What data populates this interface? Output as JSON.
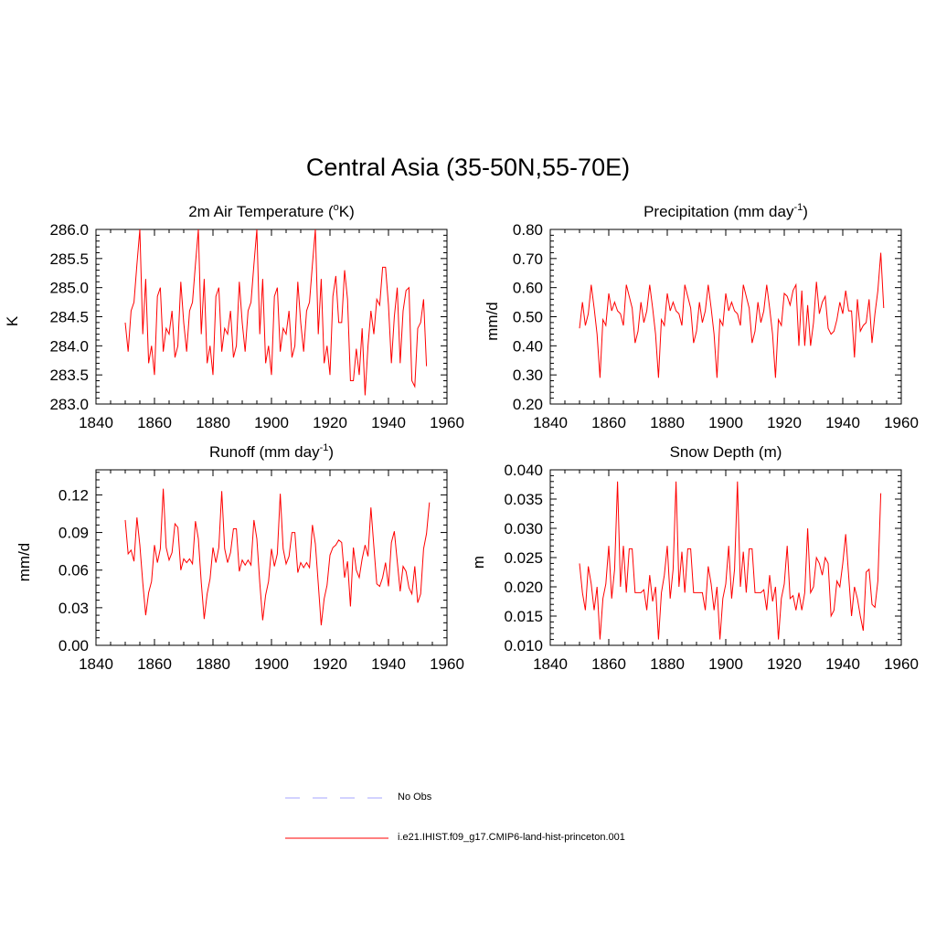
{
  "figure": {
    "title": "Central Asia (35-50N,55-70E)"
  },
  "colors": {
    "model_line": "#ff0000",
    "obs_line": "#a6a6ff",
    "axis": "#000000"
  },
  "legend": {
    "items": [
      {
        "label": "No Obs",
        "style": "dashed",
        "color": "#a6a6ff"
      },
      {
        "label": "i.e21.IHIST.f09_g17.CMIP6-land-hist-princeton.001",
        "style": "solid",
        "color": "#ff0000"
      }
    ]
  },
  "chart_data": [
    {
      "type": "line",
      "title": "2m Air Temperature (oK)",
      "title_base": "2m Air Temperature (",
      "title_sup": "o",
      "title_tail": "K)",
      "ylabel": "K",
      "xlim": [
        1840,
        1960
      ],
      "ylim": [
        283.0,
        286.0
      ],
      "xticks": [
        "1840",
        "1860",
        "1880",
        "1900",
        "1920",
        "1940",
        "1960"
      ],
      "yticks": [
        "283.0",
        "283.5",
        "284.0",
        "284.5",
        "285.0",
        "285.5",
        "286.0"
      ],
      "x_start": 1850,
      "series": [
        {
          "values": [
            284.4,
            283.9,
            284.6,
            284.75,
            285.4,
            286.0,
            284.2,
            285.15,
            283.7,
            284.0,
            283.5,
            284.85,
            285.0,
            283.9,
            284.3,
            284.2,
            284.6,
            283.8,
            284.0,
            285.1,
            284.4,
            283.9,
            284.6,
            284.75,
            285.4,
            286.0,
            284.2,
            285.15,
            283.7,
            284.0,
            283.5,
            284.85,
            285.0,
            283.9,
            284.3,
            284.2,
            284.6,
            283.8,
            284.0,
            285.1,
            284.4,
            283.9,
            284.6,
            284.75,
            285.4,
            286.0,
            284.2,
            285.15,
            283.7,
            284.0,
            283.5,
            284.85,
            285.0,
            283.9,
            284.3,
            284.2,
            284.6,
            283.8,
            284.0,
            285.1,
            284.4,
            283.9,
            284.6,
            284.75,
            285.4,
            286.0,
            284.2,
            285.15,
            283.7,
            284.0,
            283.5,
            284.85,
            285.2,
            284.4,
            284.4,
            285.3,
            284.8,
            283.4,
            283.4,
            283.95,
            283.5,
            284.3,
            283.15,
            284.0,
            284.6,
            284.2,
            284.8,
            284.7,
            285.35,
            285.35,
            284.7,
            283.7,
            284.5,
            285.0,
            283.7,
            284.6,
            284.95,
            285.0,
            283.4,
            283.3,
            284.3,
            284.4,
            284.8,
            283.65
          ]
        }
      ]
    },
    {
      "type": "line",
      "title": "Precipitation (mm day-1)",
      "title_base": "Precipitation (mm day",
      "title_sup": "-1",
      "title_tail": ")",
      "ylabel": "mm/d",
      "xlim": [
        1840,
        1960
      ],
      "ylim": [
        0.2,
        0.8
      ],
      "xticks": [
        "1840",
        "1860",
        "1880",
        "1900",
        "1920",
        "1940",
        "1960"
      ],
      "yticks": [
        "0.20",
        "0.30",
        "0.40",
        "0.50",
        "0.60",
        "0.70",
        "0.80"
      ],
      "x_start": 1850,
      "series": [
        {
          "values": [
            0.46,
            0.55,
            0.47,
            0.51,
            0.61,
            0.53,
            0.44,
            0.29,
            0.49,
            0.47,
            0.58,
            0.52,
            0.55,
            0.52,
            0.51,
            0.47,
            0.61,
            0.57,
            0.53,
            0.41,
            0.45,
            0.55,
            0.48,
            0.52,
            0.61,
            0.53,
            0.44,
            0.29,
            0.49,
            0.47,
            0.58,
            0.52,
            0.55,
            0.52,
            0.51,
            0.47,
            0.61,
            0.57,
            0.53,
            0.41,
            0.45,
            0.55,
            0.48,
            0.52,
            0.61,
            0.53,
            0.44,
            0.29,
            0.49,
            0.47,
            0.58,
            0.52,
            0.55,
            0.52,
            0.51,
            0.47,
            0.61,
            0.57,
            0.53,
            0.41,
            0.45,
            0.55,
            0.48,
            0.52,
            0.61,
            0.53,
            0.44,
            0.29,
            0.49,
            0.47,
            0.58,
            0.57,
            0.54,
            0.59,
            0.61,
            0.4,
            0.59,
            0.4,
            0.54,
            0.4,
            0.48,
            0.62,
            0.51,
            0.55,
            0.57,
            0.46,
            0.44,
            0.45,
            0.49,
            0.55,
            0.51,
            0.59,
            0.52,
            0.52,
            0.36,
            0.56,
            0.45,
            0.47,
            0.48,
            0.56,
            0.41,
            0.51,
            0.59,
            0.72,
            0.53
          ]
        }
      ]
    },
    {
      "type": "line",
      "title": "Runoff (mm day-1)",
      "title_base": "Runoff (mm day",
      "title_sup": "-1",
      "title_tail": ")",
      "ylabel": "mm/d",
      "xlim": [
        1840,
        1960
      ],
      "ylim": [
        0.0,
        0.14
      ],
      "xticks": [
        "1840",
        "1860",
        "1880",
        "1900",
        "1920",
        "1940",
        "1960"
      ],
      "yticks": [
        "0.00",
        "0.03",
        "0.06",
        "0.09",
        "0.12"
      ],
      "ytick_values": [
        0.0,
        0.03,
        0.06,
        0.09,
        0.12
      ],
      "x_start": 1850,
      "series": [
        {
          "values": [
            0.1,
            0.073,
            0.076,
            0.067,
            0.102,
            0.08,
            0.05,
            0.024,
            0.042,
            0.051,
            0.08,
            0.066,
            0.077,
            0.125,
            0.078,
            0.068,
            0.074,
            0.097,
            0.094,
            0.06,
            0.069,
            0.066,
            0.069,
            0.065,
            0.099,
            0.085,
            0.05,
            0.021,
            0.041,
            0.053,
            0.078,
            0.066,
            0.078,
            0.123,
            0.077,
            0.066,
            0.074,
            0.093,
            0.093,
            0.059,
            0.068,
            0.064,
            0.068,
            0.064,
            0.1,
            0.085,
            0.05,
            0.02,
            0.04,
            0.051,
            0.077,
            0.063,
            0.073,
            0.121,
            0.077,
            0.065,
            0.071,
            0.09,
            0.09,
            0.058,
            0.066,
            0.062,
            0.066,
            0.062,
            0.096,
            0.081,
            0.049,
            0.016,
            0.037,
            0.048,
            0.072,
            0.078,
            0.08,
            0.084,
            0.082,
            0.054,
            0.067,
            0.031,
            0.078,
            0.06,
            0.054,
            0.069,
            0.08,
            0.071,
            0.11,
            0.079,
            0.049,
            0.047,
            0.054,
            0.066,
            0.047,
            0.082,
            0.091,
            0.067,
            0.043,
            0.063,
            0.059,
            0.046,
            0.041,
            0.063,
            0.034,
            0.041,
            0.077,
            0.089,
            0.114
          ]
        }
      ]
    },
    {
      "type": "line",
      "title": "Snow Depth (m)",
      "title_base": "Snow Depth (m)",
      "title_sup": "",
      "title_tail": "",
      "ylabel": "m",
      "xlim": [
        1840,
        1960
      ],
      "ylim": [
        0.01,
        0.04
      ],
      "xticks": [
        "1840",
        "1860",
        "1880",
        "1900",
        "1920",
        "1940",
        "1960"
      ],
      "yticks": [
        "0.010",
        "0.015",
        "0.020",
        "0.025",
        "0.030",
        "0.035",
        "0.040"
      ],
      "x_start": 1850,
      "series": [
        {
          "values": [
            0.024,
            0.019,
            0.016,
            0.0235,
            0.0205,
            0.016,
            0.02,
            0.011,
            0.018,
            0.0205,
            0.027,
            0.018,
            0.023,
            0.038,
            0.02,
            0.027,
            0.019,
            0.0265,
            0.0265,
            0.019,
            0.019,
            0.019,
            0.0195,
            0.016,
            0.022,
            0.0175,
            0.02,
            0.011,
            0.019,
            0.022,
            0.027,
            0.018,
            0.023,
            0.038,
            0.02,
            0.026,
            0.019,
            0.0265,
            0.0265,
            0.019,
            0.019,
            0.019,
            0.019,
            0.016,
            0.0235,
            0.0205,
            0.016,
            0.02,
            0.011,
            0.018,
            0.0205,
            0.027,
            0.018,
            0.023,
            0.038,
            0.02,
            0.026,
            0.019,
            0.0265,
            0.0265,
            0.019,
            0.019,
            0.019,
            0.0195,
            0.016,
            0.022,
            0.0175,
            0.02,
            0.011,
            0.018,
            0.0205,
            0.027,
            0.018,
            0.0185,
            0.016,
            0.019,
            0.016,
            0.019,
            0.03,
            0.019,
            0.02,
            0.025,
            0.024,
            0.022,
            0.025,
            0.024,
            0.015,
            0.016,
            0.021,
            0.02,
            0.024,
            0.029,
            0.022,
            0.015,
            0.02,
            0.018,
            0.015,
            0.0125,
            0.0225,
            0.023,
            0.017,
            0.0165,
            0.021,
            0.036
          ]
        }
      ]
    }
  ]
}
